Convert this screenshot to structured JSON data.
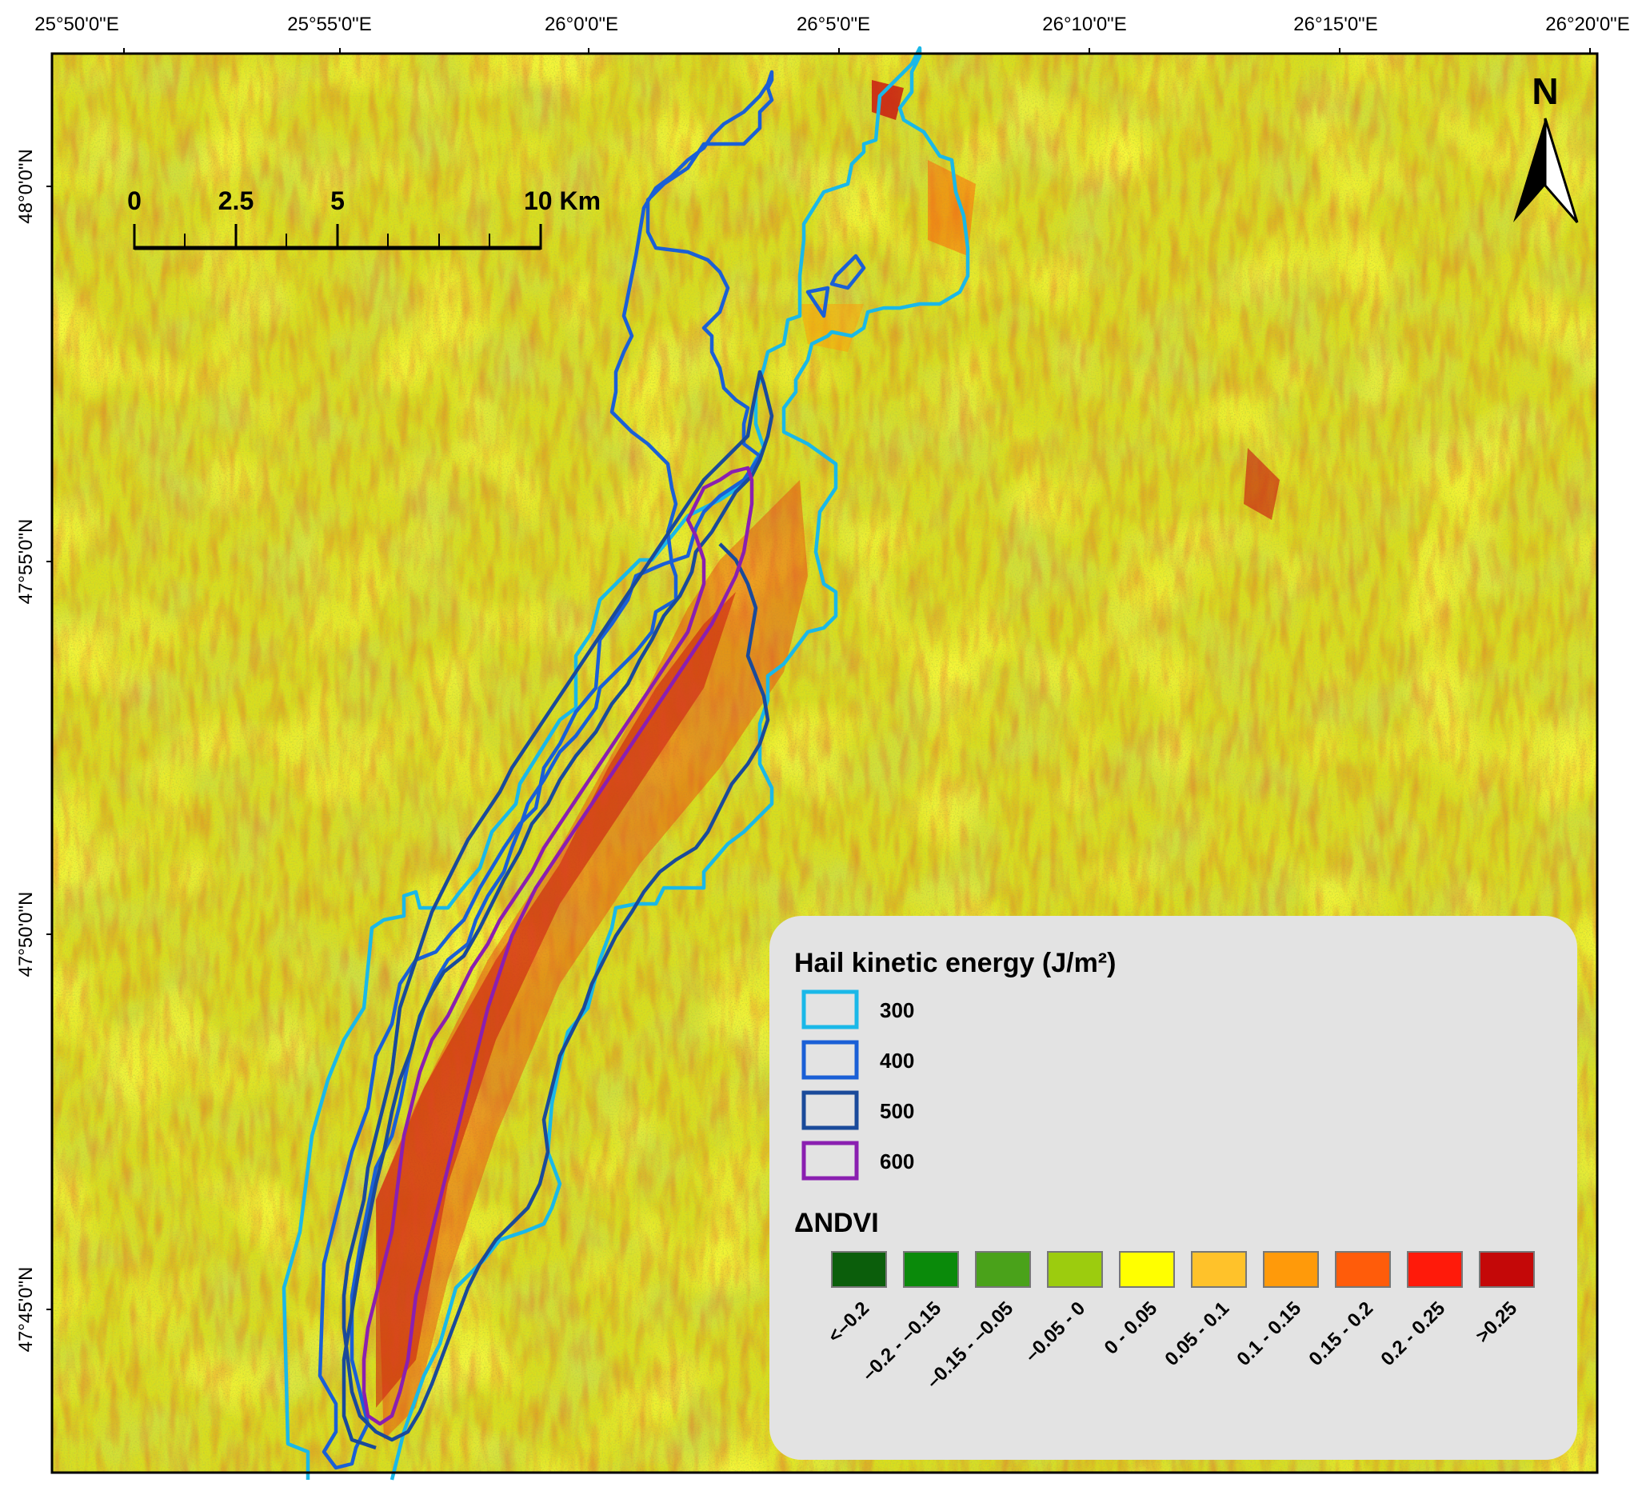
{
  "axes": {
    "top_ticks": [
      "25°50'0\"E",
      "25°55'0\"E",
      "26°0'0\"E",
      "26°5'0\"E",
      "26°10'0\"E",
      "26°15'0\"E",
      "26°20'0\"E"
    ],
    "left_ticks": [
      "48°0'0\"N",
      "47°55'0\"N",
      "47°50'0\"N",
      "47°45'0\"N"
    ]
  },
  "scale_bar": {
    "labels": [
      "0",
      "2.5",
      "5",
      "10 Km"
    ]
  },
  "north_arrow": {
    "label": "N"
  },
  "legend": {
    "hail_title": "Hail kinetic energy (J/m²)",
    "hail_items": [
      {
        "label": "300",
        "color": "#1ab8e8"
      },
      {
        "label": "400",
        "color": "#1a5fd6"
      },
      {
        "label": "500",
        "color": "#1a4a9a"
      },
      {
        "label": "600",
        "color": "#8a1fb0"
      }
    ],
    "ndvi_title": "ΔNDVI",
    "ndvi_items": [
      {
        "label": "<–0.2",
        "color": "#0b5e0b"
      },
      {
        "label": "–0.2 - –0.15",
        "color": "#0a8a0a"
      },
      {
        "label": "–0.15 - –0.05",
        "color": "#4aa21a"
      },
      {
        "label": "–0.05 - 0",
        "color": "#9ccc0e"
      },
      {
        "label": "0 - 0.05",
        "color": "#ffff00"
      },
      {
        "label": "0.05 - 0.1",
        "color": "#ffc22a"
      },
      {
        "label": "0.1 - 0.15",
        "color": "#ff9a0a"
      },
      {
        "label": "0.15 - 0.2",
        "color": "#ff5c0a"
      },
      {
        "label": "0.2 - 0.25",
        "color": "#ff1a0a"
      },
      {
        "label": ">0.25",
        "color": "#c40808"
      }
    ]
  }
}
